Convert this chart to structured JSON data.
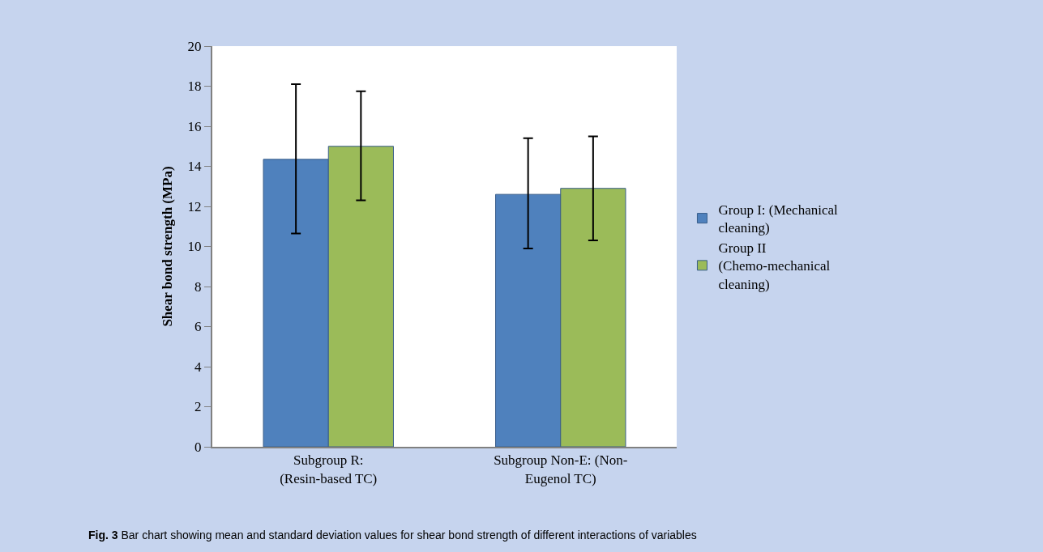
{
  "chart_data": {
    "type": "bar",
    "ylabel": "Shear bond strength (MPa)",
    "categories": [
      "Subgroup R:\n(Resin-based TC)",
      "Subgroup Non-E: (Non-\nEugenol TC)"
    ],
    "series": [
      {
        "name": "Group I: (Mechanical\ncleaning)",
        "color": "#4f81bd",
        "values": [
          14.35,
          12.6
        ],
        "errors": [
          [
            10.65,
            18.1
          ],
          [
            9.9,
            15.4
          ]
        ]
      },
      {
        "name": "Group II\n(Chemo-mechanical\ncleaning)",
        "color": "#9bbb59",
        "values": [
          15.0,
          12.9
        ],
        "errors": [
          [
            12.3,
            17.75
          ],
          [
            10.3,
            15.5
          ]
        ]
      }
    ],
    "ylim": [
      0,
      20
    ],
    "yticks": [
      0,
      2,
      4,
      6,
      8,
      10,
      12,
      14,
      16,
      18,
      20
    ],
    "legend": "right",
    "annotations": [
      "**Fig. 3** Bar chart showing mean and standard deviation values for shear bond strength of different interactions of variables"
    ]
  }
}
